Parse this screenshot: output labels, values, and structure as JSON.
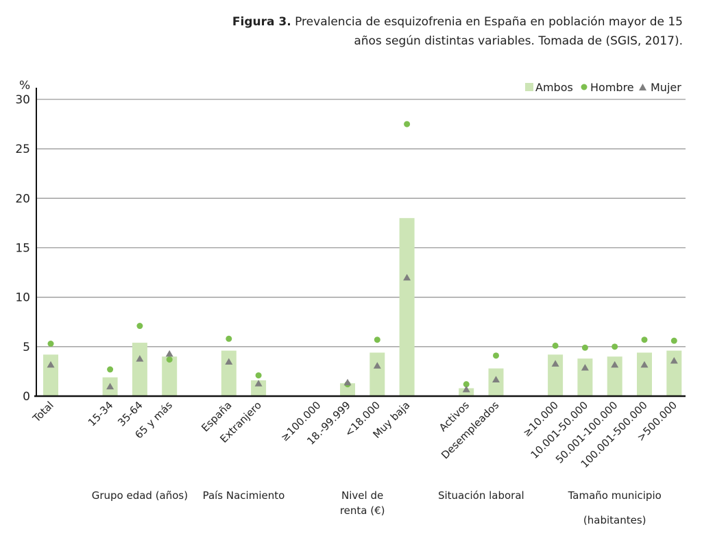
{
  "title_bold": "Figura 3.",
  "title_rest": " Prevalencia de esquizofrenia en España en población mayor de 15 años según distintas variables. Tomada de (SGIS, 2017).",
  "chart_data": {
    "type": "bar",
    "ylabel": "%",
    "ylim": [
      0,
      30
    ],
    "yticks": [
      0,
      5,
      10,
      15,
      20,
      25,
      30
    ],
    "grid": true,
    "legend_position": "top-right",
    "categories": [
      "Total",
      "15-34",
      "35-64",
      "65 y más",
      "España",
      "Extranjero",
      "≥100.000",
      "18.-99.999",
      "<18.000",
      "Muy baja",
      "Activos",
      "Desempleados",
      "≥10.000",
      "10.001-50.000",
      "50.001-100.000",
      "100.001-500.000",
      ">500.000"
    ],
    "slots": [
      0,
      2,
      3,
      4,
      6,
      7,
      9,
      10,
      11,
      12,
      14,
      15,
      17,
      18,
      19,
      20,
      21
    ],
    "series": [
      {
        "name": "Ambos",
        "type": "bar",
        "color": "#cde5b6",
        "values": [
          4.2,
          1.9,
          5.4,
          4.0,
          4.6,
          1.6,
          null,
          1.3,
          4.4,
          18.0,
          0.8,
          2.8,
          4.2,
          3.8,
          4.0,
          4.4,
          4.6
        ]
      },
      {
        "name": "Hombre",
        "type": "dot",
        "color": "#7dbf4f",
        "values": [
          5.3,
          2.7,
          7.1,
          3.7,
          5.8,
          2.1,
          null,
          1.2,
          5.7,
          27.5,
          1.2,
          4.1,
          5.1,
          4.9,
          5.0,
          5.7,
          5.6
        ]
      },
      {
        "name": "Mujer",
        "type": "triangle",
        "color": "#7f7f7f",
        "values": [
          3.2,
          1.0,
          3.8,
          4.3,
          3.5,
          1.3,
          null,
          1.4,
          3.1,
          12.0,
          0.7,
          1.7,
          3.3,
          2.9,
          3.2,
          3.2,
          3.6
        ]
      }
    ],
    "groups": [
      {
        "label": "Grupo edad (años)",
        "slot": 3
      },
      {
        "label": "País Nacimiento",
        "slot": 6.5
      },
      {
        "label": "Nivel de",
        "label2": "renta (€)",
        "slot": 10.5
      },
      {
        "label": "Situación laboral",
        "slot": 14.5
      },
      {
        "label": "Tamaño municipio",
        "label2": "(habitantes)",
        "slot": 19
      }
    ]
  }
}
